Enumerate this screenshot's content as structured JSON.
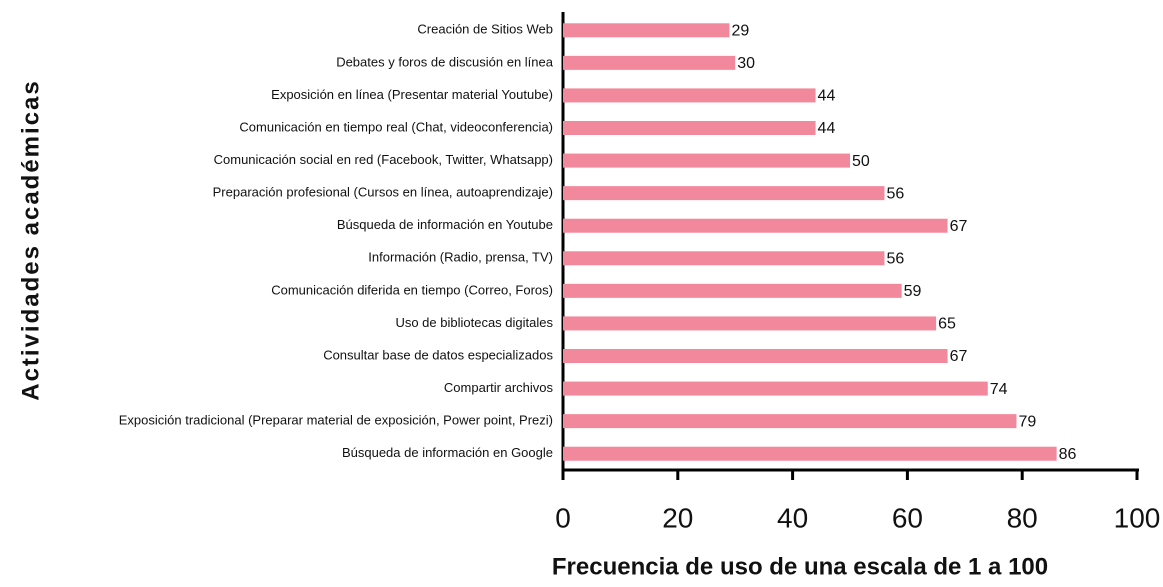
{
  "chart_data": {
    "type": "bar",
    "orientation": "horizontal",
    "xlabel": "Frecuencia de uso de una escala de 1 a 100",
    "ylabel": "Actividades académicas",
    "categories": [
      "Creación de Sitios Web",
      "Debates y foros de discusión en línea",
      "Exposición en línea (Presentar material Youtube)",
      "Comunicación en tiempo real (Chat, videoconferencia)",
      "Comunicación social en red (Facebook, Twitter, Whatsapp)",
      "Preparación profesional (Cursos en línea, autoaprendizaje)",
      "Búsqueda de información en Youtube",
      "Información (Radio, prensa, TV)",
      "Comunicación diferida en tiempo (Correo, Foros)",
      "Uso de bibliotecas digitales",
      "Consultar base de datos especializados",
      "Compartir archivos",
      "Exposición tradicional (Preparar material de exposición, Power point, Prezi)",
      "Búsqueda de información en Google"
    ],
    "values": [
      29,
      30,
      44,
      44,
      50,
      56,
      67,
      56,
      59,
      65,
      67,
      74,
      79,
      86
    ],
    "color": "#f2889c",
    "xlim": [
      0,
      100
    ],
    "xticks": [
      0,
      20,
      40,
      60,
      80,
      100
    ]
  }
}
